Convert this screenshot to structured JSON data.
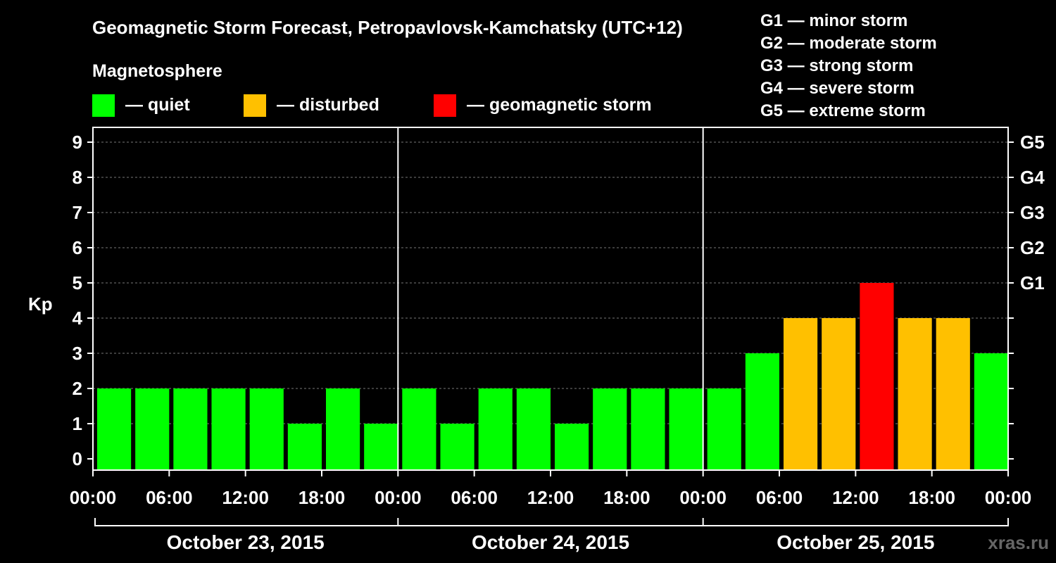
{
  "chart_data": {
    "type": "bar",
    "title": "Geomagnetic Storm Forecast, Petropavlovsk-Kamchatsky (UTC+12)",
    "ylabel": "Kp",
    "ylim": [
      0,
      9
    ],
    "yticks": [
      "0",
      "1",
      "2",
      "3",
      "4",
      "5",
      "6",
      "7",
      "8",
      "9"
    ],
    "right_ticks": [
      {
        "kp": 5,
        "label": "G1"
      },
      {
        "kp": 6,
        "label": "G2"
      },
      {
        "kp": 7,
        "label": "G3"
      },
      {
        "kp": 8,
        "label": "G4"
      },
      {
        "kp": 9,
        "label": "G5"
      }
    ],
    "x_tick_labels": [
      "00:00",
      "06:00",
      "12:00",
      "18:00",
      "00:00",
      "06:00",
      "12:00",
      "18:00",
      "00:00",
      "06:00",
      "12:00",
      "18:00",
      "00:00"
    ],
    "days": [
      "October 23, 2015",
      "October 24, 2015",
      "October 25, 2015"
    ],
    "interval_hours": 3,
    "values": [
      2,
      2,
      2,
      2,
      2,
      1,
      2,
      1,
      2,
      1,
      2,
      2,
      1,
      2,
      2,
      2,
      2,
      3,
      4,
      4,
      5,
      4,
      4,
      3
    ],
    "grid": true,
    "legend": {
      "title": "Magnetosphere",
      "items": [
        {
          "label": "— quiet",
          "color": "#00ff00"
        },
        {
          "label": "— disturbed",
          "color": "#ffc000"
        },
        {
          "label": "— geomagnetic storm",
          "color": "#ff0000"
        }
      ]
    },
    "storm_scale": [
      "G1 — minor storm",
      "G2 — moderate storm",
      "G3 — strong storm",
      "G4 — severe storm",
      "G5 — extreme storm"
    ],
    "colors": {
      "quiet": "#00ff00",
      "disturbed": "#ffc000",
      "storm": "#ff0000"
    },
    "watermark": "xras.ru"
  }
}
